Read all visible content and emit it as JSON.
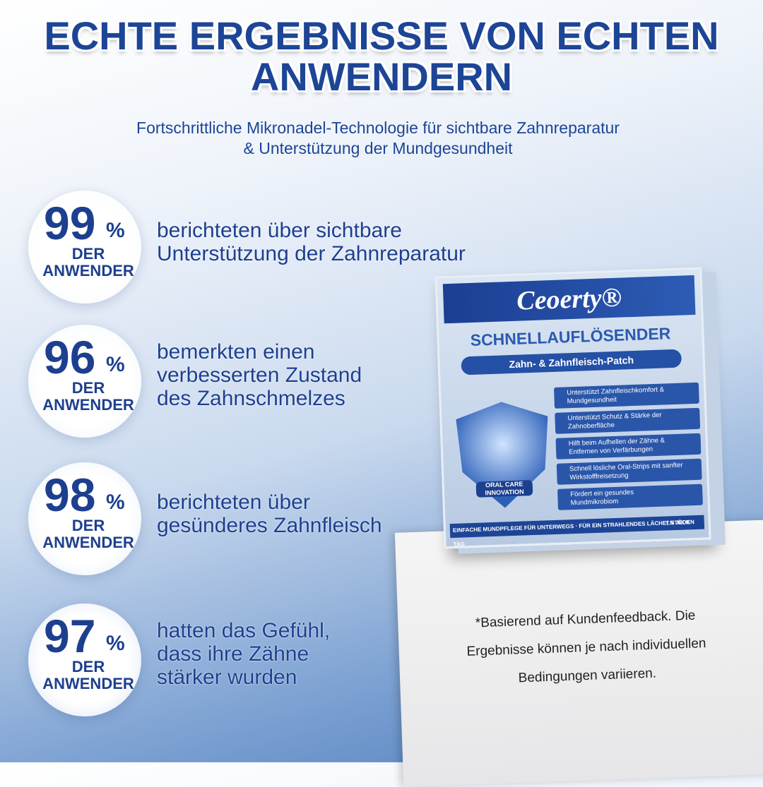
{
  "header": {
    "title_lines": [
      "ECHTE ERGEBNISSE VON ECHTEN",
      "ANWENDERN"
    ],
    "subtitle_lines": [
      "Fortschrittliche Mikronadel-Technologie für sichtbare Zahnreparatur",
      "& Unterstützung der Mundgesundheit"
    ]
  },
  "stats": [
    {
      "value": "99",
      "unit": "%",
      "label_lines": [
        "DER",
        "ANWENDER"
      ],
      "text_lines": [
        "berichteten über sichtbare",
        "Unterstützung der Zahnreparatur"
      ]
    },
    {
      "value": "96",
      "unit": "%",
      "label_lines": [
        "DER",
        "ANWENDER"
      ],
      "text_lines": [
        "bemerkten einen",
        "verbesserten Zustand",
        "des Zahnschmelzes"
      ]
    },
    {
      "value": "98",
      "unit": "%",
      "label_lines": [
        "DER",
        "ANWENDER"
      ],
      "text_lines": [
        "berichteten über",
        "gesünderes Zahnfleisch"
      ]
    },
    {
      "value": "97",
      "unit": "%",
      "label_lines": [
        "DER",
        "ANWENDER"
      ],
      "text_lines": [
        "hatten das Gefühl,",
        "dass ihre Zähne",
        "stärker wurden"
      ]
    }
  ],
  "product": {
    "brand": "Ceoerty®",
    "name": "SCHNELLAUFLÖSENDER",
    "subname": "Zahn- & Zahnfleisch-Patch",
    "badge_lines": [
      "ORAL CARE",
      "INNOVATION"
    ],
    "features": [
      [
        "Unterstützt Zahnfleischkomfort &",
        "Mundgesundheit"
      ],
      [
        "Unterstützt Schutz & Stärke der",
        "Zahnoberfläche"
      ],
      [
        "Hilft beim Aufhellen der Zähne &",
        "Entfernen von Verfärbungen"
      ],
      [
        "Schnell lösliche Oral-Strips mit sanfter",
        "Wirkstofffreisetzung"
      ],
      [
        "Fördert ein gesundes",
        "Mundmikrobiom"
      ]
    ],
    "footer": "EINFACHE MUNDPFLEGE FÜR UNTERWEGS · FÜR EIN STRAHLENDES LÄCHELN JEDEN TAG",
    "count": "7 STÜCK"
  },
  "disclaimer_lines": [
    "*Basierend auf Kundenfeedback. Die",
    "Ergebnisse können je nach individuellen",
    "Bedingungen variieren."
  ]
}
